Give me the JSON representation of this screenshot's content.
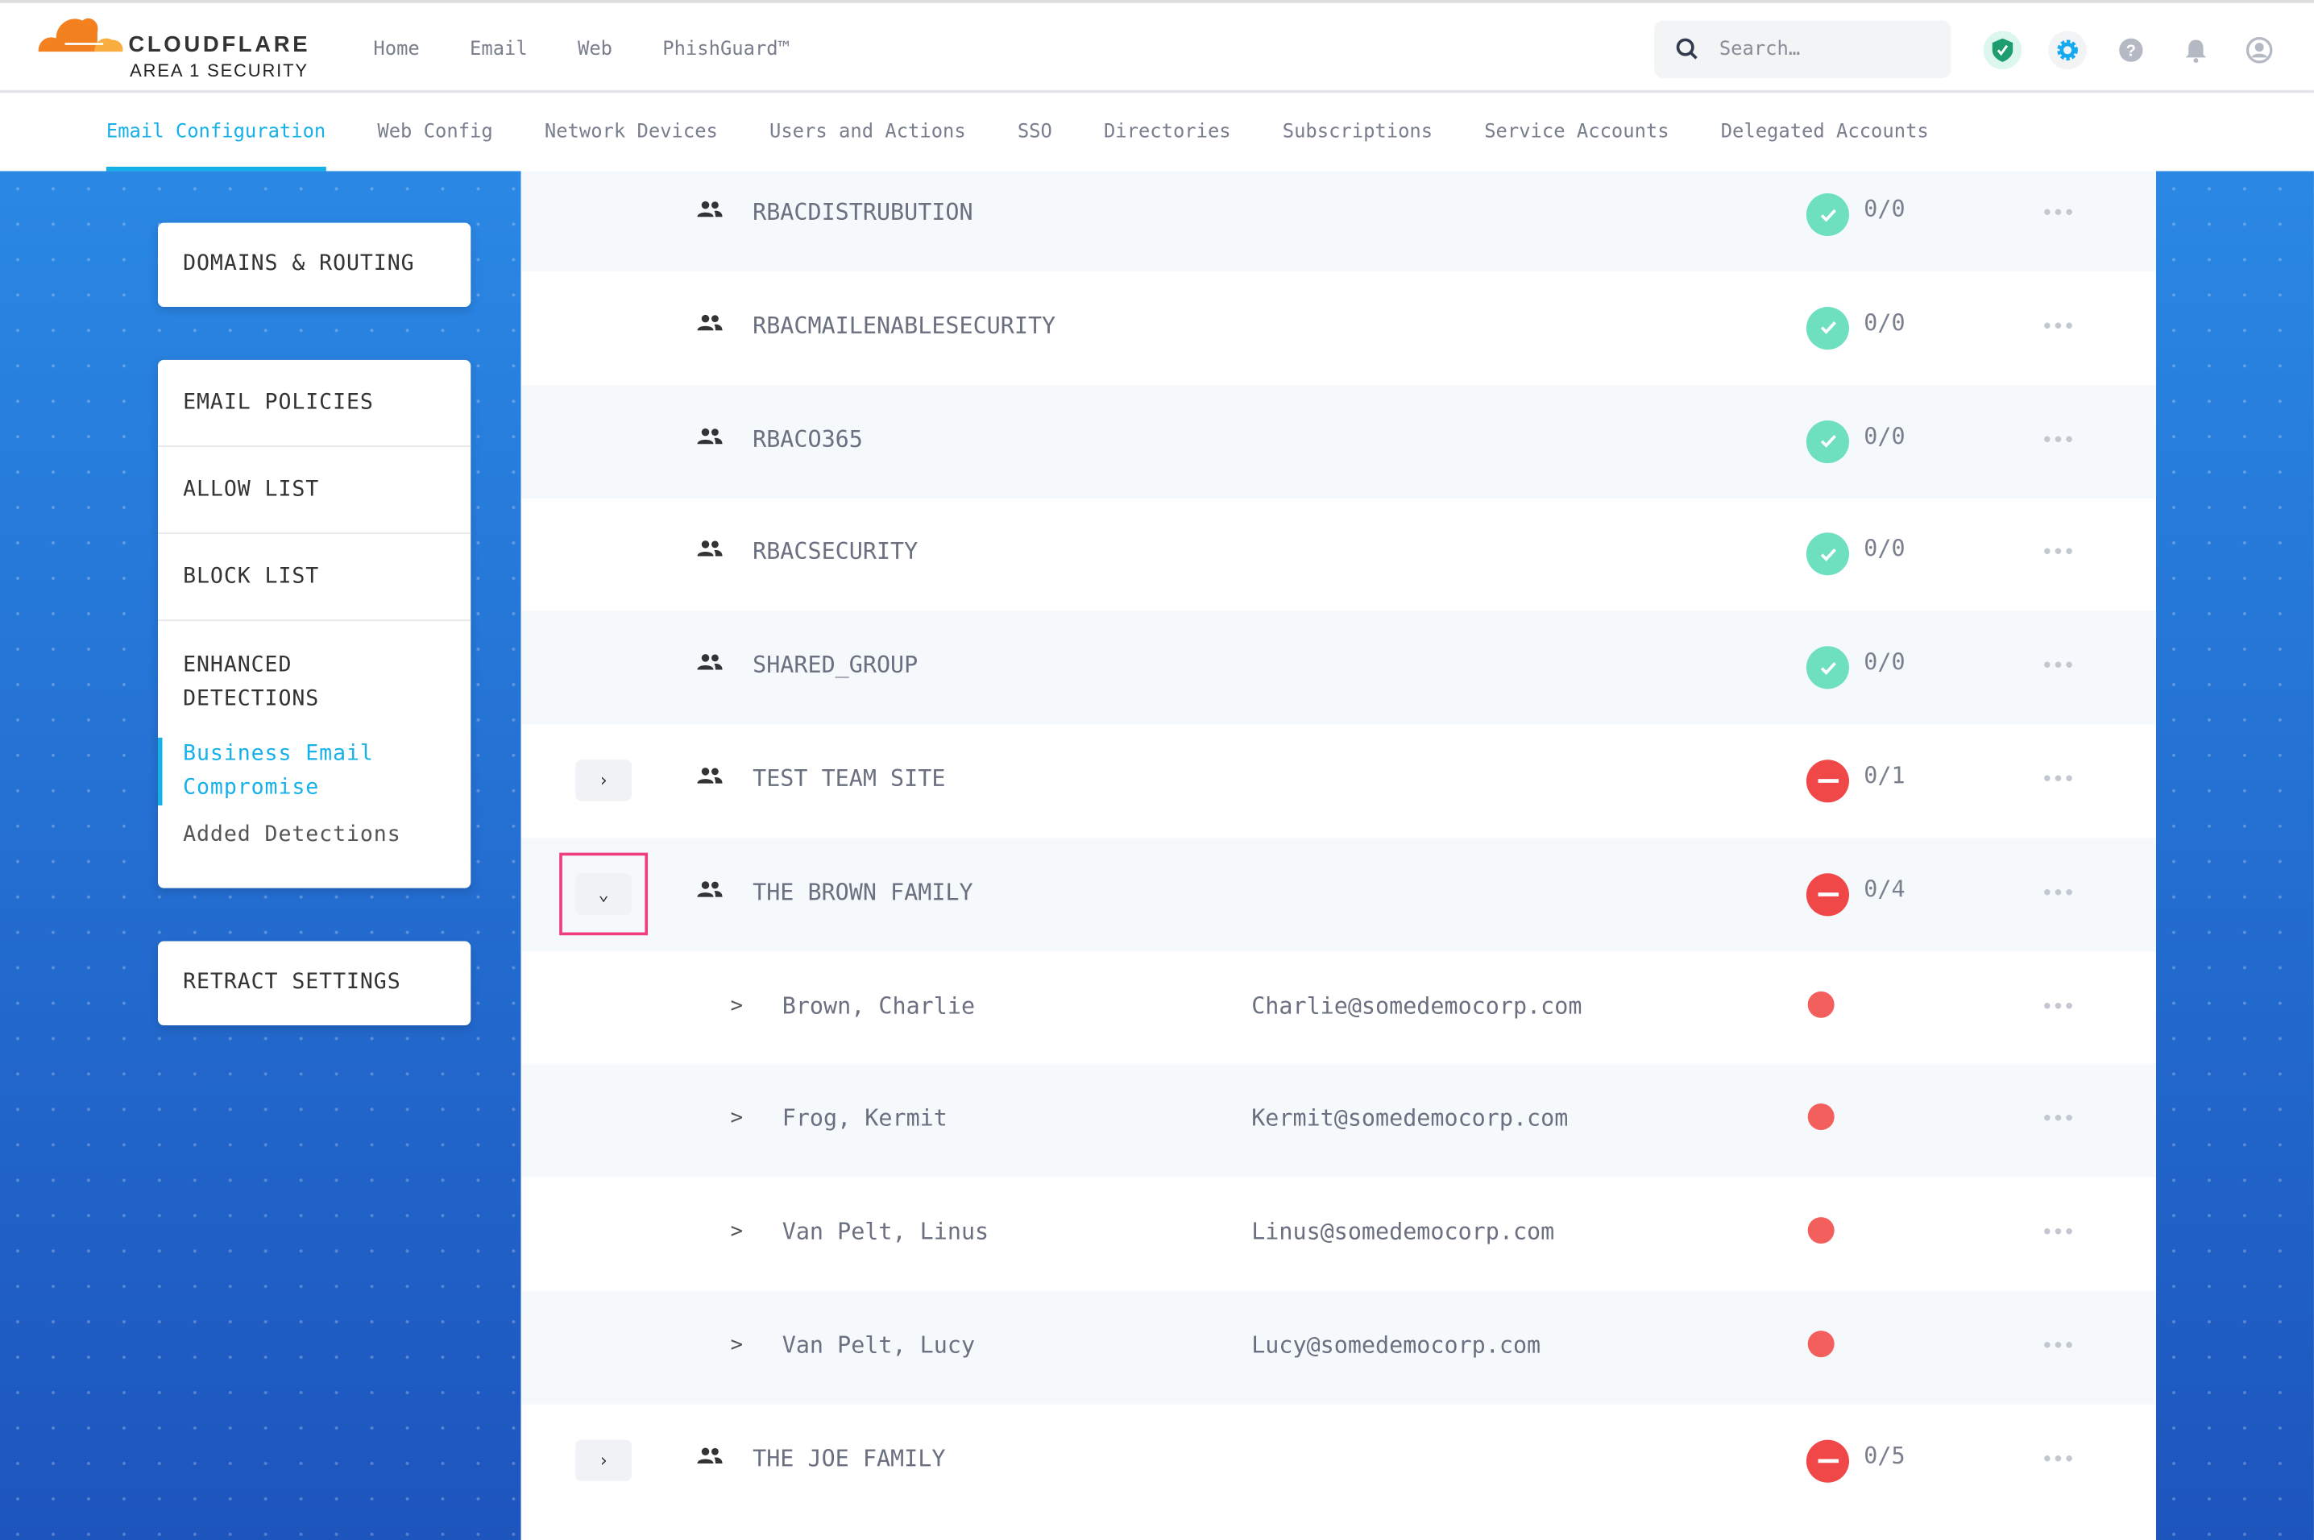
{
  "brand": {
    "name": "CLOUDFLARE",
    "product": "AREA 1 SECURITY"
  },
  "topnav": [
    "Home",
    "Email",
    "Web",
    "PhishGuard™"
  ],
  "search": {
    "placeholder": "Search…"
  },
  "header_icons": [
    "shield-check-icon",
    "gear-icon",
    "help-icon",
    "bell-icon",
    "user-icon"
  ],
  "subnav": {
    "tabs": [
      "Email Configuration",
      "Web Config",
      "Network Devices",
      "Users and Actions",
      "SSO",
      "Directories",
      "Subscriptions",
      "Service Accounts",
      "Delegated Accounts"
    ],
    "active": "Email Configuration"
  },
  "sidebar": {
    "domains": "DOMAINS & ROUTING",
    "policies": "EMAIL POLICIES",
    "allow": "ALLOW LIST",
    "block": "BLOCK LIST",
    "enhanced": "ENHANCED DETECTIONS",
    "bec": "Business Email Compromise",
    "added": "Added Detections",
    "retract": "RETRACT SETTINGS"
  },
  "colors": {
    "accent": "#17b1ea",
    "ok": "#6ee0c0",
    "error": "#f04848",
    "highlight": "#ee3e7f"
  },
  "rows": [
    {
      "type": "group",
      "name": "RBACDISTRUBUTION",
      "status": "ok",
      "count": "0/0",
      "more": "•••"
    },
    {
      "type": "group",
      "name": "RBACMAILENABLESECURITY",
      "status": "ok",
      "count": "0/0",
      "more": "•••"
    },
    {
      "type": "group",
      "name": "RBACO365",
      "status": "ok",
      "count": "0/0",
      "more": "•••"
    },
    {
      "type": "group",
      "name": "RBACSECURITY",
      "status": "ok",
      "count": "0/0",
      "more": "•••"
    },
    {
      "type": "group",
      "name": "SHARED_GROUP",
      "status": "ok",
      "count": "0/0",
      "more": "•••"
    },
    {
      "type": "group",
      "name": "TEST TEAM SITE",
      "status": "error",
      "count": "0/1",
      "expander": "›",
      "more": "•••"
    },
    {
      "type": "group",
      "name": "THE BROWN FAMILY",
      "status": "error",
      "count": "0/4",
      "expander": "⌄",
      "expanded": true,
      "more": "•••"
    },
    {
      "type": "user",
      "chevron": ">",
      "name": "Brown, Charlie",
      "email": "Charlie@somedemocorp.com",
      "more": "•••"
    },
    {
      "type": "user",
      "chevron": ">",
      "name": "Frog, Kermit",
      "email": "Kermit@somedemocorp.com",
      "more": "•••"
    },
    {
      "type": "user",
      "chevron": ">",
      "name": "Van Pelt, Linus",
      "email": "Linus@somedemocorp.com",
      "more": "•••"
    },
    {
      "type": "user",
      "chevron": ">",
      "name": "Van Pelt, Lucy",
      "email": "Lucy@somedemocorp.com",
      "more": "•••"
    },
    {
      "type": "group",
      "name": "THE JOE FAMILY",
      "status": "error",
      "count": "0/5",
      "expander": "›",
      "more": "•••"
    }
  ]
}
